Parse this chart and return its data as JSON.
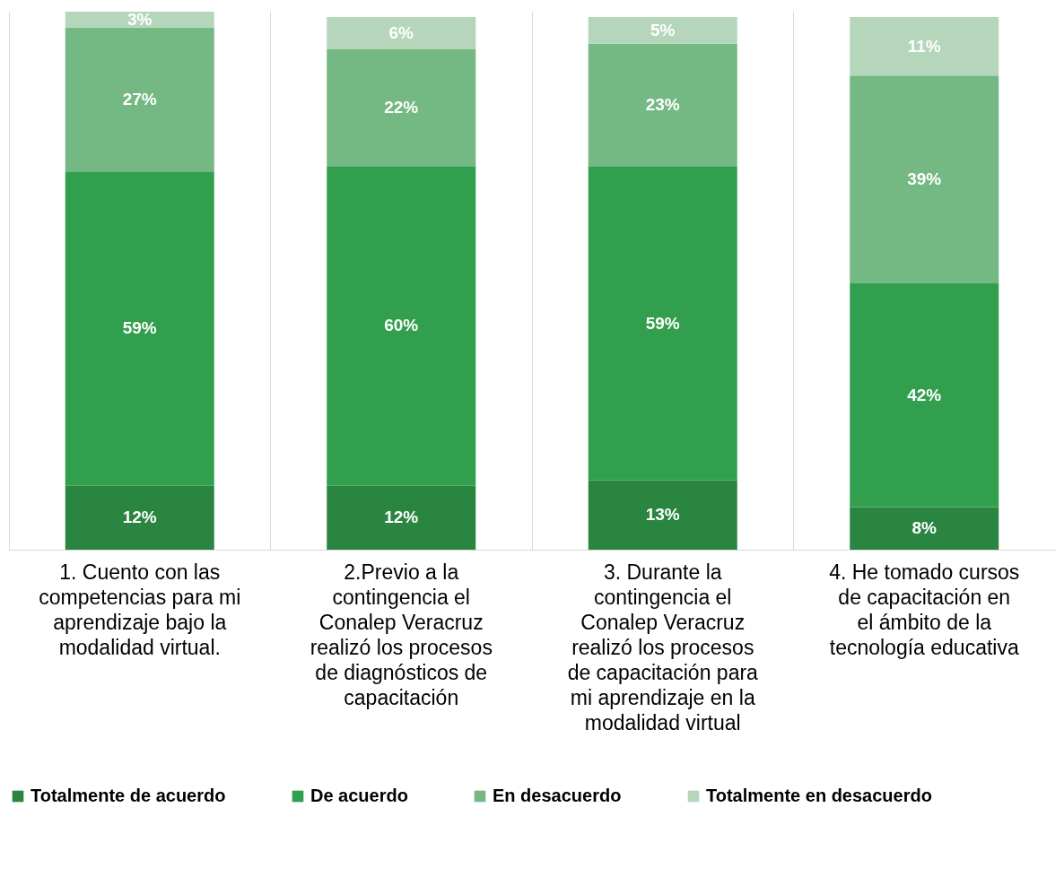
{
  "chart_data": {
    "type": "bar",
    "stacked": true,
    "legend": "bottom",
    "categories": [
      "1. Cuento con las competencias para mi aprendizaje bajo la modalidad virtual.",
      "2.Previo a la contingencia el Conalep Veracruz realizó los procesos de diagnósticos de capacitación",
      "3. Durante la contingencia el Conalep Veracruz realizó los procesos de capacitación para mi aprendizaje en la modalidad virtual",
      "4. He tomado cursos de capacitación en el ámbito de la tecnología educativa"
    ],
    "series": [
      {
        "name": "Totalmente de acuerdo",
        "color": "#2a8541",
        "values": [
          12,
          12,
          13,
          8
        ],
        "value_labels": [
          "12%",
          "12%",
          "13%",
          "8%"
        ]
      },
      {
        "name": "De acuerdo",
        "color": "#319f4d",
        "values": [
          59,
          60,
          59,
          42
        ],
        "value_labels": [
          "59%",
          "60%",
          "59%",
          "42%"
        ]
      },
      {
        "name": "En desacuerdo",
        "color": "#74b883",
        "values": [
          27,
          22,
          23,
          39
        ],
        "value_labels": [
          "27%",
          "22%",
          "23%",
          "39%"
        ]
      },
      {
        "name": "Totalmente en desacuerdo",
        "color": "#b5d6bb",
        "values": [
          3,
          6,
          5,
          11
        ],
        "value_labels": [
          "3%",
          "6%",
          "5%",
          "11%"
        ]
      }
    ]
  }
}
